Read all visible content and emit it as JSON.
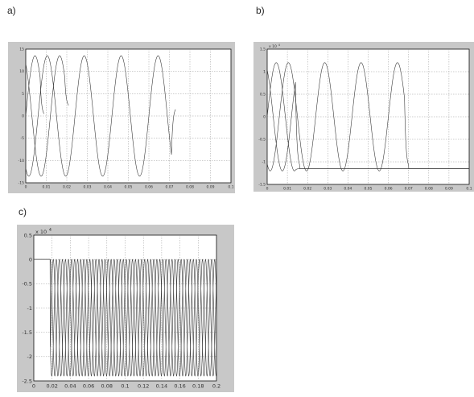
{
  "panels": [
    {
      "label": "a)"
    },
    {
      "label": "b)"
    },
    {
      "label": "c)"
    }
  ],
  "chart_data": [
    {
      "id": "a",
      "type": "line",
      "title": "",
      "xlabel": "",
      "ylabel": "",
      "grid": true,
      "xlim": [
        0,
        0.1
      ],
      "ylim": [
        -15,
        15
      ],
      "x_ticks": [
        "0",
        "0.01",
        "0.02",
        "0.03",
        "0.04",
        "0.05",
        "0.06",
        "0.07",
        "0.08",
        "0.09",
        "0.1"
      ],
      "y_ticks": [
        "15",
        "10",
        "5",
        "0",
        "-5",
        "-10",
        "-15"
      ],
      "exponent_label": "",
      "series": [
        {
          "amplitude": 13.5,
          "period": 0.018,
          "phase_frac": 0.0,
          "x_end": 0.007,
          "tail": 0
        },
        {
          "amplitude": 13.5,
          "period": 0.018,
          "phase_frac": 0.333,
          "x_end": 0.019,
          "tail": 2
        },
        {
          "amplitude": 13.5,
          "period": 0.018,
          "phase_frac": 0.667,
          "x_end": 0.071,
          "tail": 2
        }
      ]
    },
    {
      "id": "b",
      "type": "line",
      "title": "",
      "xlabel": "",
      "ylabel": "",
      "grid": true,
      "xlim": [
        0,
        0.1
      ],
      "ylim": [
        -1.5,
        1.5
      ],
      "x_ticks": [
        "0",
        "0.01",
        "0.02",
        "0.03",
        "0.04",
        "0.05",
        "0.06",
        "0.07",
        "0.08",
        "0.09",
        "0.1"
      ],
      "y_ticks": [
        "1.5",
        "1",
        "0.5",
        "0",
        "-0.5",
        "-1",
        "-1.5"
      ],
      "exponent_label": "x 10",
      "exponent_power": "4",
      "series": [
        {
          "amplitude": 1.2,
          "period": 0.018,
          "phase_frac": 0.0,
          "x_end": 0.014,
          "tail": -1.15
        },
        {
          "amplitude": 1.2,
          "period": 0.018,
          "phase_frac": 0.333,
          "x_end": 0.014,
          "tail": -1.15
        },
        {
          "amplitude": 1.2,
          "period": 0.018,
          "phase_frac": 0.667,
          "x_end": 0.068,
          "tail": -1.15
        }
      ]
    },
    {
      "id": "c",
      "type": "line",
      "title": "",
      "xlabel": "",
      "ylabel": "",
      "grid": true,
      "xlim": [
        0,
        0.2
      ],
      "ylim": [
        -2.5,
        0.5
      ],
      "x_ticks": [
        "0",
        "0.02",
        "0.04",
        "0.06",
        "0.08",
        "0.1",
        "0.12",
        "0.14",
        "0.16",
        "0.18",
        "0.2"
      ],
      "y_ticks": [
        "0.5",
        "0",
        "-0.5",
        "-1",
        "-1.5",
        "-2",
        "-2.5"
      ],
      "exponent_label": "x 10",
      "exponent_power": "4",
      "series": [
        {
          "mode": "neg_sine",
          "amplitude": 2.4,
          "period": 0.01,
          "phase_frac": 0.0,
          "x_start": 0.018
        },
        {
          "mode": "neg_sine",
          "amplitude": 2.4,
          "period": 0.01,
          "phase_frac": 0.333,
          "x_start": 0.018
        },
        {
          "mode": "neg_sine",
          "amplitude": 2.4,
          "period": 0.01,
          "phase_frac": 0.667,
          "x_start": 0.018
        }
      ]
    }
  ]
}
